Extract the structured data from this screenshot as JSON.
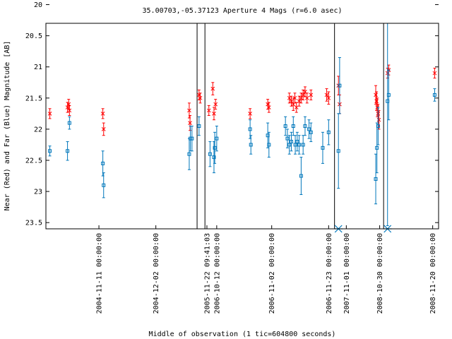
{
  "chart_data": {
    "type": "scatter",
    "title": "35.00703,-05.37123   Aperture 4 Mags (r=6.0 asec)",
    "xlabel": "Middle of observation (1 tic=604800 seconds)",
    "ylabel": "Near (Red) and Far (Blue) Magnitude [AB]",
    "ylim": [
      23.6,
      20.3
    ],
    "y_reversed": true,
    "y_ticks": [
      "20",
      "20.5",
      "21",
      "21.5",
      "22",
      "22.5",
      "23",
      "23.5"
    ],
    "x_tick_labels": [
      "2004-11-11 00:00:00",
      "2004-12-02 00:00:00",
      "2005-11-22 09:41:03",
      "2006-10-12 00:00:00",
      "2006-11-02 00:00:00",
      "2006-11-23 00:00:00",
      "2007-11-01 00:00:00",
      "2008-10-30 00:00:00",
      "2008-11-20 00:00:00"
    ],
    "x_tick_positions": [
      0.135,
      0.28,
      0.41,
      0.435,
      0.575,
      0.72,
      0.765,
      0.85,
      0.985
    ],
    "vertical_lines": [
      0.385,
      0.405,
      0.735,
      0.86
    ],
    "series": [
      {
        "color": "#ff0000",
        "marker": "x",
        "points": [
          [
            0.01,
            21.75,
            0.08
          ],
          [
            0.055,
            21.65,
            0.08
          ],
          [
            0.058,
            21.6,
            0.08
          ],
          [
            0.06,
            21.7,
            0.08
          ],
          [
            0.145,
            21.75,
            0.08
          ],
          [
            0.147,
            22.0,
            0.1
          ],
          [
            0.365,
            21.7,
            0.12
          ],
          [
            0.367,
            21.9,
            0.12
          ],
          [
            0.39,
            21.45,
            0.08
          ],
          [
            0.393,
            21.5,
            0.08
          ],
          [
            0.415,
            21.7,
            0.08
          ],
          [
            0.425,
            21.35,
            0.1
          ],
          [
            0.428,
            21.75,
            0.1
          ],
          [
            0.432,
            21.6,
            0.08
          ],
          [
            0.52,
            21.75,
            0.08
          ],
          [
            0.565,
            21.6,
            0.08
          ],
          [
            0.568,
            21.65,
            0.08
          ],
          [
            0.62,
            21.5,
            0.08
          ],
          [
            0.625,
            21.55,
            0.08
          ],
          [
            0.63,
            21.6,
            0.1
          ],
          [
            0.634,
            21.5,
            0.08
          ],
          [
            0.638,
            21.65,
            0.08
          ],
          [
            0.645,
            21.55,
            0.08
          ],
          [
            0.65,
            21.5,
            0.08
          ],
          [
            0.655,
            21.45,
            0.08
          ],
          [
            0.66,
            21.4,
            0.08
          ],
          [
            0.665,
            21.5,
            0.08
          ],
          [
            0.675,
            21.45,
            0.08
          ],
          [
            0.715,
            21.45,
            0.1
          ],
          [
            0.72,
            21.5,
            0.1
          ],
          [
            0.745,
            21.3,
            0.15
          ],
          [
            0.748,
            21.6,
            0.15
          ],
          [
            0.84,
            21.45,
            0.15
          ],
          [
            0.842,
            21.55,
            0.15
          ],
          [
            0.844,
            21.65,
            0.15
          ],
          [
            0.846,
            21.75,
            0.15
          ],
          [
            0.848,
            21.85,
            0.15
          ],
          [
            0.87,
            21.1,
            0.08
          ],
          [
            0.873,
            21.05,
            0.08
          ],
          [
            0.99,
            21.1,
            0.08
          ]
        ]
      },
      {
        "color": "#0077bb",
        "marker": "square",
        "points": [
          [
            0.01,
            22.35,
            0.08
          ],
          [
            0.055,
            22.35,
            0.15
          ],
          [
            0.06,
            21.9,
            0.1
          ],
          [
            0.145,
            22.55,
            0.2
          ],
          [
            0.147,
            22.9,
            0.2
          ],
          [
            0.365,
            22.4,
            0.25
          ],
          [
            0.368,
            22.15,
            0.2
          ],
          [
            0.372,
            22.15,
            0.2
          ],
          [
            0.39,
            21.95,
            0.15
          ],
          [
            0.418,
            22.4,
            0.2
          ],
          [
            0.428,
            22.45,
            0.25
          ],
          [
            0.43,
            22.3,
            0.25
          ],
          [
            0.435,
            22.15,
            0.2
          ],
          [
            0.52,
            22.0,
            0.15
          ],
          [
            0.522,
            22.25,
            0.15
          ],
          [
            0.565,
            22.1,
            0.2
          ],
          [
            0.568,
            22.25,
            0.2
          ],
          [
            0.61,
            21.95,
            0.15
          ],
          [
            0.615,
            22.15,
            0.15
          ],
          [
            0.62,
            22.25,
            0.15
          ],
          [
            0.625,
            22.2,
            0.15
          ],
          [
            0.63,
            21.95,
            0.15
          ],
          [
            0.635,
            22.25,
            0.15
          ],
          [
            0.64,
            22.2,
            0.15
          ],
          [
            0.645,
            22.25,
            0.15
          ],
          [
            0.65,
            22.75,
            0.3
          ],
          [
            0.655,
            22.25,
            0.15
          ],
          [
            0.66,
            21.95,
            0.15
          ],
          [
            0.67,
            22.0,
            0.15
          ],
          [
            0.675,
            22.05,
            0.15
          ],
          [
            0.705,
            22.3,
            0.25
          ],
          [
            0.72,
            22.05,
            0.2
          ],
          [
            0.745,
            22.35,
            0.6
          ],
          [
            0.748,
            21.3,
            0.45
          ],
          [
            0.84,
            22.8,
            0.4
          ],
          [
            0.843,
            22.3,
            0.4
          ],
          [
            0.846,
            21.95,
            0.3
          ],
          [
            0.87,
            21.55,
            2.0
          ],
          [
            0.873,
            21.45,
            0.4
          ],
          [
            0.99,
            21.45,
            0.1
          ]
        ]
      }
    ],
    "off_scale_markers": [
      {
        "x": 0.745,
        "color": "#0077bb"
      },
      {
        "x": 0.87,
        "color": "#0077bb"
      }
    ]
  }
}
